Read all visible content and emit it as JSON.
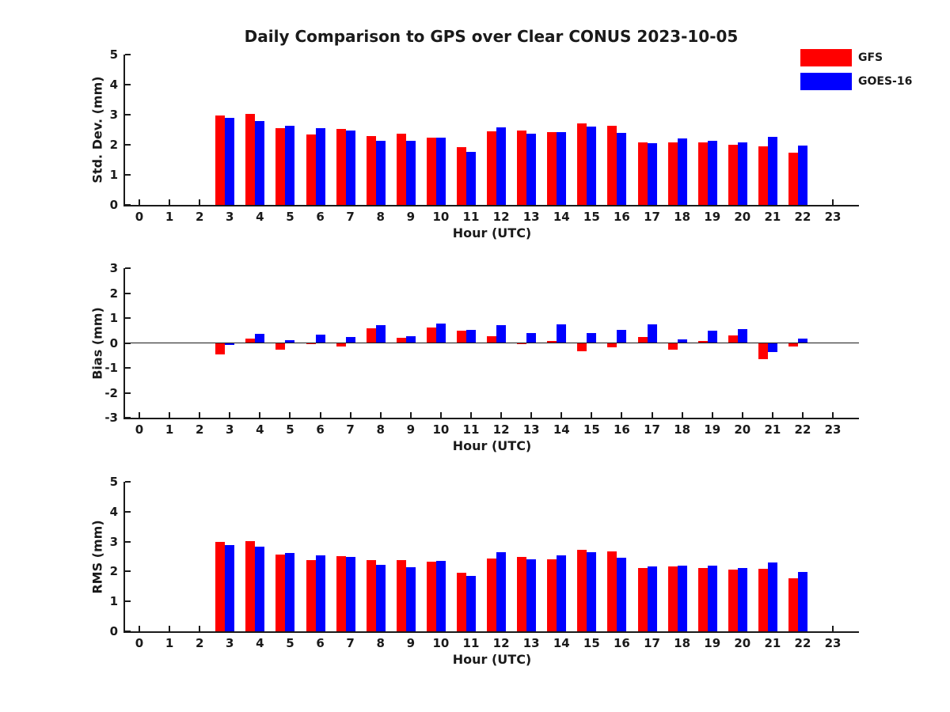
{
  "title": "Daily Comparison to GPS over Clear CONUS 2023-10-05",
  "legend": {
    "position": "upper-right",
    "items": [
      {
        "label": "GFS",
        "color": "#ff0000"
      },
      {
        "label": "GOES-16",
        "color": "#0000ff"
      }
    ]
  },
  "chart_data": [
    {
      "type": "bar",
      "id": "stddev",
      "title": "",
      "xlabel": "Hour (UTC)",
      "ylabel": "Std. Dev. (mm)",
      "ylim": [
        0,
        5
      ],
      "yticks": [
        0,
        1,
        2,
        3,
        4,
        5
      ],
      "grid": false,
      "categories": [
        0,
        1,
        2,
        3,
        4,
        5,
        6,
        7,
        8,
        9,
        10,
        11,
        12,
        13,
        14,
        15,
        16,
        17,
        18,
        19,
        20,
        21,
        22,
        23
      ],
      "series": [
        {
          "name": "GFS",
          "color": "#ff0000",
          "values": [
            null,
            null,
            null,
            2.97,
            3.03,
            2.55,
            2.35,
            2.53,
            2.3,
            2.38,
            2.25,
            1.93,
            2.44,
            2.47,
            2.42,
            2.72,
            2.62,
            2.08,
            2.08,
            2.09,
            2.01,
            1.96,
            1.74,
            null
          ]
        },
        {
          "name": "GOES-16",
          "color": "#0000ff",
          "values": [
            null,
            null,
            null,
            2.9,
            2.8,
            2.62,
            2.55,
            2.48,
            2.12,
            2.13,
            2.23,
            1.76,
            2.57,
            2.37,
            2.43,
            2.6,
            2.4,
            2.04,
            2.2,
            2.14,
            2.07,
            2.27,
            1.97,
            null
          ]
        }
      ]
    },
    {
      "type": "bar",
      "id": "bias",
      "title": "",
      "xlabel": "Hour (UTC)",
      "ylabel": "Bias (mm)",
      "ylim": [
        -3,
        3
      ],
      "yticks": [
        -3,
        -2,
        -1,
        0,
        1,
        2,
        3
      ],
      "zero_line": true,
      "grid": false,
      "categories": [
        0,
        1,
        2,
        3,
        4,
        5,
        6,
        7,
        8,
        9,
        10,
        11,
        12,
        13,
        14,
        15,
        16,
        17,
        18,
        19,
        20,
        21,
        22,
        23
      ],
      "series": [
        {
          "name": "GFS",
          "color": "#ff0000",
          "values": [
            null,
            null,
            null,
            -0.45,
            0.17,
            -0.28,
            -0.03,
            -0.14,
            0.6,
            0.2,
            0.62,
            0.48,
            0.27,
            -0.05,
            0.08,
            -0.33,
            -0.18,
            0.24,
            -0.28,
            0.08,
            0.29,
            -0.66,
            -0.14,
            null
          ]
        },
        {
          "name": "GOES-16",
          "color": "#0000ff",
          "values": [
            null,
            null,
            null,
            -0.08,
            0.38,
            0.12,
            0.33,
            0.25,
            0.7,
            0.26,
            0.78,
            0.53,
            0.7,
            0.4,
            0.75,
            0.4,
            0.53,
            0.75,
            0.13,
            0.49,
            0.55,
            -0.35,
            0.19,
            null
          ]
        }
      ]
    },
    {
      "type": "bar",
      "id": "rms",
      "title": "",
      "xlabel": "Hour (UTC)",
      "ylabel": "RMS (mm)",
      "ylim": [
        0,
        5
      ],
      "yticks": [
        0,
        1,
        2,
        3,
        4,
        5
      ],
      "grid": false,
      "categories": [
        0,
        1,
        2,
        3,
        4,
        5,
        6,
        7,
        8,
        9,
        10,
        11,
        12,
        13,
        14,
        15,
        16,
        17,
        18,
        19,
        20,
        21,
        22,
        23
      ],
      "series": [
        {
          "name": "GFS",
          "color": "#ff0000",
          "values": [
            null,
            null,
            null,
            3.0,
            3.02,
            2.57,
            2.37,
            2.52,
            2.39,
            2.39,
            2.34,
            1.97,
            2.44,
            2.5,
            2.42,
            2.73,
            2.66,
            2.12,
            2.16,
            2.12,
            2.06,
            2.08,
            1.76,
            null
          ]
        },
        {
          "name": "GOES-16",
          "color": "#0000ff",
          "values": [
            null,
            null,
            null,
            2.88,
            2.82,
            2.62,
            2.54,
            2.49,
            2.23,
            2.13,
            2.36,
            1.84,
            2.64,
            2.41,
            2.55,
            2.64,
            2.46,
            2.18,
            2.2,
            2.19,
            2.12,
            2.31,
            1.99,
            null
          ]
        }
      ]
    }
  ]
}
